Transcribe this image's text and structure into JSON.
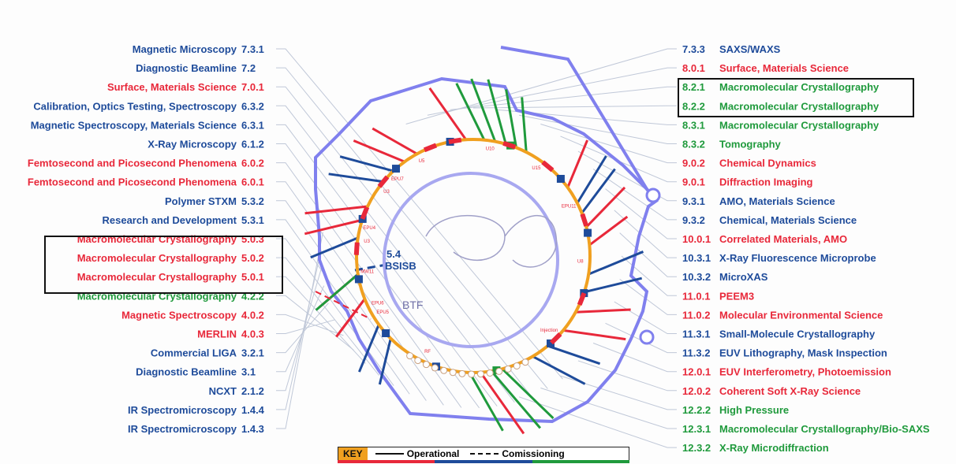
{
  "colors": {
    "blue": "#1e4b9a",
    "red": "#e8283a",
    "green": "#1f9a3c",
    "ring": "#f0a020",
    "wall": "#8080ee",
    "inner": "#a8a8f0"
  },
  "left_beamlines": [
    {
      "name": "Magnetic Microscopy",
      "id": "7.3.1",
      "c": "blue",
      "boxed": false
    },
    {
      "name": "Diagnostic Beamline",
      "id": "7.2",
      "c": "blue",
      "boxed": false
    },
    {
      "name": "Surface, Materials Science",
      "id": "7.0.1",
      "c": "red",
      "boxed": false
    },
    {
      "name": "Calibration, Optics Testing, Spectroscopy",
      "id": "6.3.2",
      "c": "blue",
      "boxed": false
    },
    {
      "name": "Magnetic Spectroscopy, Materials Science",
      "id": "6.3.1",
      "c": "blue",
      "boxed": false
    },
    {
      "name": "X-Ray Microscopy",
      "id": "6.1.2",
      "c": "blue",
      "boxed": false
    },
    {
      "name": "Femtosecond and Picosecond Phenomena",
      "id": "6.0.2",
      "c": "red",
      "boxed": false
    },
    {
      "name": "Femtosecond and Picosecond Phenomena",
      "id": "6.0.1",
      "c": "red",
      "boxed": false
    },
    {
      "name": "Polymer STXM",
      "id": "5.3.2",
      "c": "blue",
      "boxed": false
    },
    {
      "name": "Research and Development",
      "id": "5.3.1",
      "c": "blue",
      "boxed": false
    },
    {
      "name": "Macromolecular Crystallography",
      "id": "5.0.3",
      "c": "red",
      "boxed": true
    },
    {
      "name": "Macromolecular Crystallography",
      "id": "5.0.2",
      "c": "red",
      "boxed": true
    },
    {
      "name": "Macromolecular Crystallography",
      "id": "5.0.1",
      "c": "red",
      "boxed": true
    },
    {
      "name": "Macromolecular Crystallography",
      "id": "4.2.2",
      "c": "green",
      "boxed": false
    },
    {
      "name": "Magnetic Spectroscopy",
      "id": "4.0.2",
      "c": "red",
      "boxed": false
    },
    {
      "name": "MERLIN",
      "id": "4.0.3",
      "c": "red",
      "boxed": false
    },
    {
      "name": "Commercial LIGA",
      "id": "3.2.1",
      "c": "blue",
      "boxed": false
    },
    {
      "name": "Diagnostic Beamline",
      "id": "3.1",
      "c": "blue",
      "boxed": false
    },
    {
      "name": "NCXT",
      "id": "2.1.2",
      "c": "blue",
      "boxed": false
    },
    {
      "name": "IR Spectromicroscopy",
      "id": "1.4.4",
      "c": "blue",
      "boxed": false
    },
    {
      "name": "IR Spectromicroscopy",
      "id": "1.4.3",
      "c": "blue",
      "boxed": false
    }
  ],
  "right_beamlines": [
    {
      "id": "7.3.3",
      "name": "SAXS/WAXS",
      "c": "blue",
      "boxed": false
    },
    {
      "id": "8.0.1",
      "name": "Surface, Materials Science",
      "c": "red",
      "boxed": false
    },
    {
      "id": "8.2.1",
      "name": "Macromolecular Crystallography",
      "c": "green",
      "boxed": true
    },
    {
      "id": "8.2.2",
      "name": "Macromolecular Crystallography",
      "c": "green",
      "boxed": true
    },
    {
      "id": "8.3.1",
      "name": "Macromolecular Crystallography",
      "c": "green",
      "boxed": false
    },
    {
      "id": "8.3.2",
      "name": "Tomography",
      "c": "green",
      "boxed": false
    },
    {
      "id": "9.0.2",
      "name": "Chemical Dynamics",
      "c": "red",
      "boxed": false
    },
    {
      "id": "9.0.1",
      "name": "Diffraction Imaging",
      "c": "red",
      "boxed": false
    },
    {
      "id": "9.3.1",
      "name": "AMO, Materials Science",
      "c": "blue",
      "boxed": false
    },
    {
      "id": "9.3.2",
      "name": "Chemical, Materials Science",
      "c": "blue",
      "boxed": false
    },
    {
      "id": "10.0.1",
      "name": "Correlated Materials, AMO",
      "c": "red",
      "boxed": false
    },
    {
      "id": "10.3.1",
      "name": "X-Ray Fluorescence Microprobe",
      "c": "blue",
      "boxed": false
    },
    {
      "id": "10.3.2",
      "name": "MicroXAS",
      "c": "blue",
      "boxed": false
    },
    {
      "id": "11.0.1",
      "name": "PEEM3",
      "c": "red",
      "boxed": false
    },
    {
      "id": "11.0.2",
      "name": "Molecular Environmental Science",
      "c": "red",
      "boxed": false
    },
    {
      "id": "11.3.1",
      "name": "Small-Molecule Crystallography",
      "c": "blue",
      "boxed": false
    },
    {
      "id": "11.3.2",
      "name": "EUV Lithography, Mask Inspection",
      "c": "blue",
      "boxed": false
    },
    {
      "id": "12.0.1",
      "name": "EUV Interferometry, Photoemission",
      "c": "red",
      "boxed": false
    },
    {
      "id": "12.0.2",
      "name": "Coherent Soft X-Ray Science",
      "c": "red",
      "boxed": false
    },
    {
      "id": "12.2.2",
      "name": "High Pressure",
      "c": "green",
      "boxed": false
    },
    {
      "id": "12.3.1",
      "name": "Macromolecular Crystallography/Bio-SAXS",
      "c": "green",
      "boxed": false
    },
    {
      "id": "12.3.2",
      "name": "X-Ray Microdiffraction",
      "c": "green",
      "boxed": false
    }
  ],
  "ring": {
    "btf_label": "BTF",
    "bsisb_id": "5.4",
    "bsisb_name": "BSISB",
    "insertion_labels": [
      "U5",
      "EPU7",
      "U3",
      "U10",
      "U15",
      "EPU11",
      "U8",
      "EPU4",
      "U3",
      "MW11",
      "EPU6",
      "EPU5",
      "RF",
      "Injection"
    ]
  },
  "key": {
    "tag": "KEY",
    "operational": "Operational",
    "commissioning": "Comissioning"
  }
}
